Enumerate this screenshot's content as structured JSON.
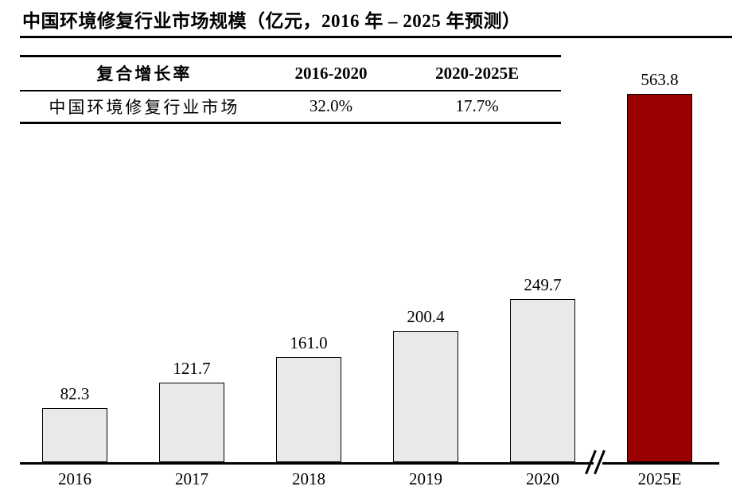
{
  "title": "中国环境修复行业市场规模（亿元，2016 年 – 2025 年预测）",
  "cagr_table": {
    "headers": [
      "复合增长率",
      "2016-2020",
      "2020-2025E"
    ],
    "rows": [
      {
        "label": "中国环境修复行业市场",
        "cagr_2016_2020": "32.0%",
        "cagr_2020_2025e": "17.7%"
      }
    ]
  },
  "chart_data": {
    "type": "bar",
    "title": "中国环境修复行业市场规模（亿元，2016 年 – 2025 年预测）",
    "series_name": "中国环境修复行业市场",
    "unit": "亿元",
    "categories": [
      "2016",
      "2017",
      "2018",
      "2019",
      "2020",
      "2025E"
    ],
    "values": [
      82.3,
      121.7,
      161.0,
      200.4,
      249.7,
      563.8
    ],
    "value_labels": [
      "82.3",
      "121.7",
      "161.0",
      "200.4",
      "249.7",
      "563.8"
    ],
    "highlight_category": "2025E",
    "colors": {
      "bar_default": "#E9E9E9",
      "bar_highlight": "#990000",
      "bar_border": "#000000",
      "axis": "#000000",
      "text": "#000000"
    },
    "axis_break_between": [
      "2020",
      "2025E"
    ],
    "cagr": {
      "2016-2020": "32.0%",
      "2020-2025E": "17.7%"
    },
    "xlabel": "",
    "ylabel": "",
    "ylim": [
      0,
      600
    ],
    "grid": false,
    "legend": false
  }
}
